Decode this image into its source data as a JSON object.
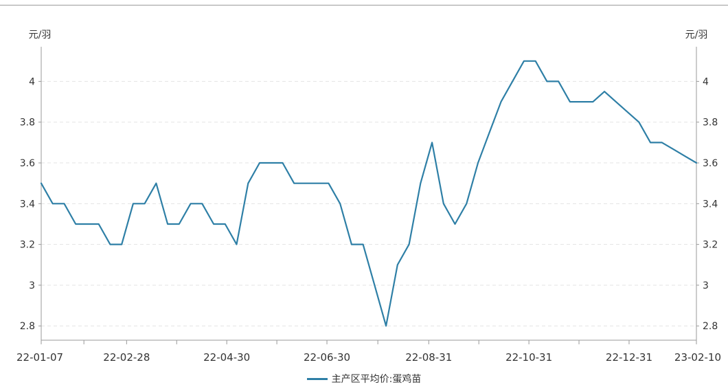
{
  "chart_data": {
    "type": "line",
    "y_unit_left": "元/羽",
    "y_unit_right": "元/羽",
    "ylim": [
      2.73,
      4.17
    ],
    "yticks": [
      "2.8",
      "3",
      "3.2",
      "3.4",
      "3.6",
      "3.8",
      "4"
    ],
    "ytick_values": [
      2.8,
      3.0,
      3.2,
      3.4,
      3.6,
      3.8,
      4.0
    ],
    "x_tick_labels": [
      "22-01-07",
      "22-02-28",
      "22-04-30",
      "22-06-30",
      "22-08-31",
      "22-10-31",
      "22-12-31",
      "23-02-10"
    ],
    "grid": "horizontal dashed",
    "legend_position": "bottom-center",
    "colors": {
      "series": "#2e7fa6"
    },
    "series": [
      {
        "name": "主产区平均价:蛋鸡苗",
        "x": [
          "22-01-07",
          "22-01-14",
          "22-01-21",
          "22-01-28",
          "22-02-04",
          "22-02-11",
          "22-02-18",
          "22-02-25",
          "22-03-04",
          "22-03-11",
          "22-03-18",
          "22-03-25",
          "22-04-01",
          "22-04-08",
          "22-04-15",
          "22-04-22",
          "22-04-29",
          "22-05-06",
          "22-05-13",
          "22-05-20",
          "22-05-27",
          "22-06-03",
          "22-06-10",
          "22-06-17",
          "22-06-24",
          "22-07-01",
          "22-07-08",
          "22-07-15",
          "22-07-22",
          "22-07-29",
          "22-08-05",
          "22-08-12",
          "22-08-19",
          "22-08-26",
          "22-09-02",
          "22-09-09",
          "22-09-16",
          "22-09-23",
          "22-09-30",
          "22-10-07",
          "22-10-14",
          "22-10-21",
          "22-10-28",
          "22-11-04",
          "22-11-11",
          "22-11-18",
          "22-11-25",
          "22-12-02",
          "22-12-09",
          "22-12-16",
          "22-12-23",
          "22-12-30",
          "23-01-06",
          "23-01-13",
          "23-01-20",
          "23-01-27",
          "23-02-03",
          "23-02-10"
        ],
        "values": [
          3.5,
          3.4,
          3.4,
          3.3,
          3.3,
          3.3,
          3.2,
          3.2,
          3.4,
          3.4,
          3.5,
          3.3,
          3.3,
          3.4,
          3.4,
          3.3,
          3.3,
          3.2,
          3.5,
          3.6,
          3.6,
          3.6,
          3.5,
          3.5,
          3.5,
          3.5,
          3.4,
          3.2,
          3.2,
          3.0,
          2.8,
          3.1,
          3.2,
          3.5,
          3.7,
          3.4,
          3.3,
          3.4,
          3.6,
          3.75,
          3.9,
          4.0,
          4.1,
          4.1,
          4.0,
          4.0,
          3.9,
          3.9,
          3.9,
          3.95,
          3.9,
          3.85,
          3.8,
          3.7,
          3.7,
          3.667,
          3.633,
          3.6
        ]
      }
    ]
  },
  "legend": {
    "label": "主产区平均价:蛋鸡苗"
  }
}
